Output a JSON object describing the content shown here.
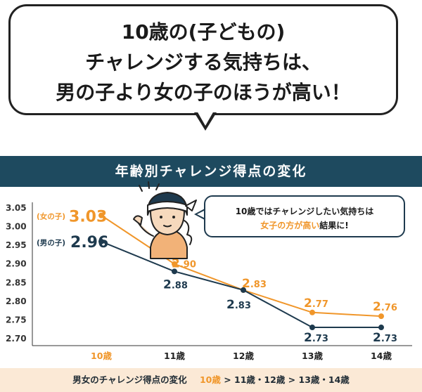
{
  "headline": {
    "line1": "10歳の(子どもの)",
    "line2": "チャレンジする気持ちは、",
    "line3": "男の子より女の子のほうが高い！"
  },
  "banner_title": "年齢別チャレンジ得点の変化",
  "callout": {
    "line1": "10歳ではチャレンジしたい気持ちは",
    "line2_highlight": "女子の方が高い",
    "line2_rest": "結果に!"
  },
  "footer": {
    "prefix": "男女のチャレンジ得点の変化",
    "highlight": "10歳",
    "rest": "> 11歳・12歳 > 13歳・14歳"
  },
  "colors": {
    "girls": "#f0962a",
    "boys": "#1e3a4e",
    "banner": "#1e4a5f",
    "footer_bg": "#fbe9d6"
  },
  "chart_data": {
    "type": "line",
    "categories": [
      "10歳",
      "11歳",
      "12歳",
      "13歳",
      "14歳"
    ],
    "series": [
      {
        "name": "(女の子)",
        "values": [
          3.03,
          2.9,
          2.83,
          2.77,
          2.76
        ],
        "value_labels": [
          "3.03",
          "2.90",
          "2.83",
          "2.77",
          "2.76"
        ]
      },
      {
        "name": "(男の子)",
        "values": [
          2.96,
          2.88,
          2.83,
          2.73,
          2.73
        ],
        "value_labels": [
          "2.96",
          "2.88",
          "2.83",
          "2.73",
          "2.73"
        ]
      }
    ],
    "y_ticks": [
      "3.05",
      "3.00",
      "2.95",
      "2.90",
      "2.85",
      "2.80",
      "2.75",
      "2.70"
    ],
    "ylim": [
      2.7,
      3.05
    ],
    "grid": false,
    "highlight_category": "10歳"
  }
}
